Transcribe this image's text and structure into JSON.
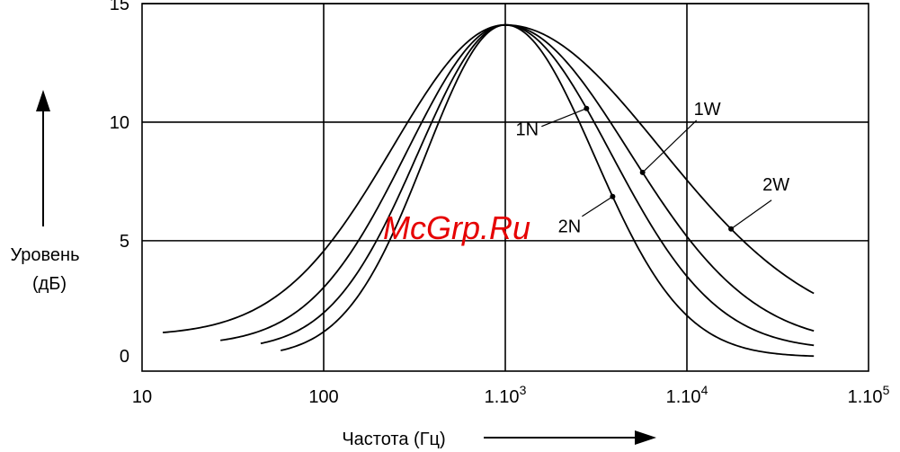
{
  "watermark": "McGrp.Ru",
  "chart_data": {
    "type": "line",
    "xlabel": "Частота (Гц)",
    "ylabel_line1": "Уровень",
    "ylabel_line2": "(дБ)",
    "x_scale": "log",
    "xlim": [
      10,
      100000
    ],
    "ylim": [
      -0.5,
      15
    ],
    "grid": true,
    "x_ticks": [
      {
        "value": 10,
        "base": "10",
        "exp": ""
      },
      {
        "value": 100,
        "base": "100",
        "exp": ""
      },
      {
        "value": 1000,
        "base": "1.10",
        "exp": "3"
      },
      {
        "value": 10000,
        "base": "1.10",
        "exp": "4"
      },
      {
        "value": 100000,
        "base": "1.10",
        "exp": "5"
      }
    ],
    "y_ticks": [
      {
        "value": 0,
        "label": "0"
      },
      {
        "value": 5,
        "label": "5"
      },
      {
        "value": 10,
        "label": "10"
      },
      {
        "value": 15,
        "label": "15"
      }
    ],
    "series": [
      {
        "name": "2W",
        "peak_x": 1000,
        "peak_y": 14.1,
        "floor": 1.0,
        "w_left": 0.62,
        "w_right": 0.85,
        "x_start": 13,
        "x_end": 50000,
        "label_point_x": 17500
      },
      {
        "name": "1W",
        "peak_x": 1000,
        "peak_y": 14.1,
        "floor": 0.6,
        "w_left": 0.54,
        "w_right": 0.68,
        "x_start": 27,
        "x_end": 50000,
        "label_point_x": 5700
      },
      {
        "name": "1N",
        "peak_x": 1000,
        "peak_y": 14.1,
        "floor": 0.4,
        "w_left": 0.48,
        "w_right": 0.58,
        "x_start": 45,
        "x_end": 50000,
        "label_point_x": 2800
      },
      {
        "name": "2N",
        "peak_x": 1000,
        "peak_y": 14.1,
        "floor": 0.1,
        "w_left": 0.44,
        "w_right": 0.49,
        "x_start": 58,
        "x_end": 50000,
        "label_point_x": 3900
      }
    ]
  }
}
